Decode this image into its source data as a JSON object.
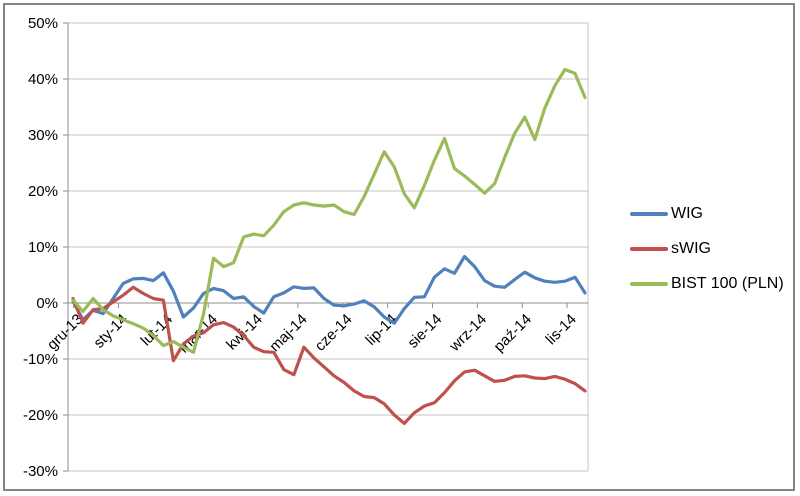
{
  "chart_data": {
    "type": "line",
    "y_axis": {
      "tick_labels": [
        "50%",
        "40%",
        "30%",
        "20%",
        "10%",
        "0%",
        "-10%",
        "-20%",
        "-30%"
      ],
      "tick_values": [
        50,
        40,
        30,
        20,
        10,
        0,
        -10,
        -20,
        -30
      ],
      "min": -30,
      "max": 50,
      "grid": true
    },
    "x_axis": {
      "categories": [
        "gru-13",
        "sty-14",
        "lut-14",
        "mar-14",
        "kwi-14",
        "maj-14",
        "cze-14",
        "lip-14",
        "sie-14",
        "wrz-14",
        "paź-14",
        "lis-14"
      ]
    },
    "series": [
      {
        "name": "WIG",
        "color": "#4F81BD",
        "values": [
          0.3,
          -3.0,
          -1.3,
          -1.9,
          0.8,
          3.5,
          4.3,
          4.4,
          4.0,
          5.4,
          2.1,
          -2.5,
          -0.9,
          1.7,
          2.6,
          2.2,
          0.8,
          1.1,
          -0.6,
          -1.8,
          1.1,
          1.8,
          2.9,
          2.6,
          2.7,
          0.8,
          -0.4,
          -0.5,
          -0.2,
          0.4,
          -0.7,
          -2.5,
          -3.6,
          -1.0,
          1.0,
          1.1,
          4.6,
          6.1,
          5.3,
          8.3,
          6.5,
          4.0,
          3.0,
          2.8,
          4.2,
          5.5,
          4.5,
          3.9,
          3.7,
          3.9,
          4.6,
          1.8
        ]
      },
      {
        "name": "sWIG",
        "color": "#C0504D",
        "values": [
          0.8,
          -3.6,
          -1.2,
          -1.0,
          0.2,
          1.4,
          2.8,
          1.7,
          0.8,
          0.5,
          -10.3,
          -7.3,
          -5.9,
          -5.3,
          -3.9,
          -3.5,
          -4.3,
          -5.8,
          -7.9,
          -8.7,
          -8.8,
          -11.9,
          -12.8,
          -7.9,
          -9.8,
          -11.4,
          -13.0,
          -14.2,
          -15.7,
          -16.7,
          -16.9,
          -18.0,
          -20.0,
          -21.5,
          -19.6,
          -18.4,
          -17.8,
          -16.0,
          -13.9,
          -12.3,
          -12.0,
          -13.0,
          -14.0,
          -13.8,
          -13.1,
          -13.0,
          -13.4,
          -13.5,
          -13.1,
          -13.6,
          -14.4,
          -15.7
        ]
      },
      {
        "name": "BIST 100 (PLN)",
        "color": "#9BBB59",
        "values": [
          0.5,
          -1.5,
          0.8,
          -1.2,
          -2.3,
          -3.0,
          -3.7,
          -4.5,
          -5.8,
          -7.6,
          -6.9,
          -7.9,
          -8.8,
          -2.0,
          8.0,
          6.5,
          7.2,
          11.8,
          12.3,
          12.0,
          13.9,
          16.3,
          17.5,
          17.9,
          17.5,
          17.3,
          17.5,
          16.3,
          15.8,
          19.0,
          23.0,
          27.0,
          24.3,
          19.5,
          17.0,
          21.0,
          25.5,
          29.4,
          24.0,
          22.7,
          21.2,
          19.6,
          21.3,
          26.0,
          30.3,
          33.2,
          29.2,
          34.8,
          38.8,
          41.7,
          41.0,
          36.7
        ]
      }
    ],
    "legend_position": "right"
  },
  "colors": {
    "background": "#FFFFFF",
    "border": "#848484",
    "gridline": "#C6C6C6",
    "axis": "#8E8E8E",
    "text": "#000000"
  }
}
